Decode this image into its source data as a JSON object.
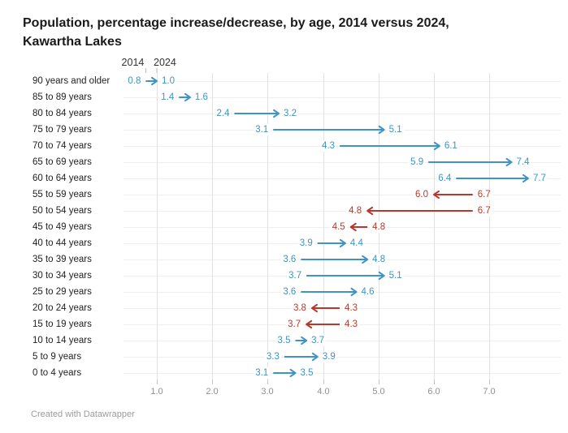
{
  "page": {
    "title_lines": {
      "0": "Population, percentage increase/decrease, by age, 2014 versus 2024,",
      "1": "Kawartha Lakes"
    },
    "footer": "Created with Datawrapper"
  },
  "legend": {
    "start_label": "2014",
    "end_label": "2024"
  },
  "colors": {
    "increase": "#3E94C4",
    "decrease": "#BA382B",
    "gridline": "#e2e2e2",
    "row_line": "#eeeeee",
    "axis_tick": "#c6c6c6",
    "legend_tick": "#b5b5b5",
    "axis_text": "#8f8f8f",
    "row_label_text": "#222222",
    "title_text": "#1a1a1a",
    "footer_text": "#9b9b9b"
  },
  "chart_data": {
    "type": "arrow-range",
    "title": "Population, percentage increase/decrease, by age, 2014 versus 2024, Kawartha Lakes",
    "xlabel": "",
    "ylabel": "",
    "xlim": [
      0.4,
      8.3
    ],
    "grid": "vertical",
    "legend_position": "top-left-above-first-row",
    "series_labels": {
      "start": "2014",
      "end": "2024"
    },
    "x_ticks": [
      1,
      2,
      3,
      4,
      5,
      6,
      7
    ],
    "x_tick_labels": [
      "1.0",
      "2.0",
      "3.0",
      "4.0",
      "5.0",
      "6.0",
      "7.0"
    ],
    "rows": [
      {
        "label": "90 years and older",
        "start": 0.8,
        "end": 1.0,
        "change": "increase"
      },
      {
        "label": "85 to 89 years",
        "start": 1.4,
        "end": 1.6,
        "change": "increase"
      },
      {
        "label": "80 to 84 years",
        "start": 2.4,
        "end": 3.2,
        "change": "increase"
      },
      {
        "label": "75 to 79 years",
        "start": 3.1,
        "end": 5.1,
        "change": "increase"
      },
      {
        "label": "70 to 74 years",
        "start": 4.3,
        "end": 6.1,
        "change": "increase"
      },
      {
        "label": "65 to 69 years",
        "start": 5.9,
        "end": 7.4,
        "change": "increase"
      },
      {
        "label": "60 to 64 years",
        "start": 6.4,
        "end": 7.7,
        "change": "increase"
      },
      {
        "label": "55 to 59 years",
        "start": 6.7,
        "end": 6.0,
        "change": "decrease"
      },
      {
        "label": "50 to 54 years",
        "start": 6.7,
        "end": 4.8,
        "change": "decrease"
      },
      {
        "label": "45 to 49 years",
        "start": 4.8,
        "end": 4.5,
        "change": "decrease"
      },
      {
        "label": "40 to 44 years",
        "start": 3.9,
        "end": 4.4,
        "change": "increase"
      },
      {
        "label": "35 to 39 years",
        "start": 3.6,
        "end": 4.8,
        "change": "increase"
      },
      {
        "label": "30 to 34 years",
        "start": 3.7,
        "end": 5.1,
        "change": "increase"
      },
      {
        "label": "25 to 29 years",
        "start": 3.6,
        "end": 4.6,
        "change": "increase"
      },
      {
        "label": "20 to 24 years",
        "start": 4.3,
        "end": 3.8,
        "change": "decrease"
      },
      {
        "label": "15 to 19 years",
        "start": 4.3,
        "end": 3.7,
        "change": "decrease"
      },
      {
        "label": "10 to 14 years",
        "start": 3.5,
        "end": 3.7,
        "change": "increase"
      },
      {
        "label": "5 to 9 years",
        "start": 3.3,
        "end": 3.9,
        "change": "increase"
      },
      {
        "label": "0 to 4 years",
        "start": 3.1,
        "end": 3.5,
        "change": "increase"
      }
    ]
  }
}
